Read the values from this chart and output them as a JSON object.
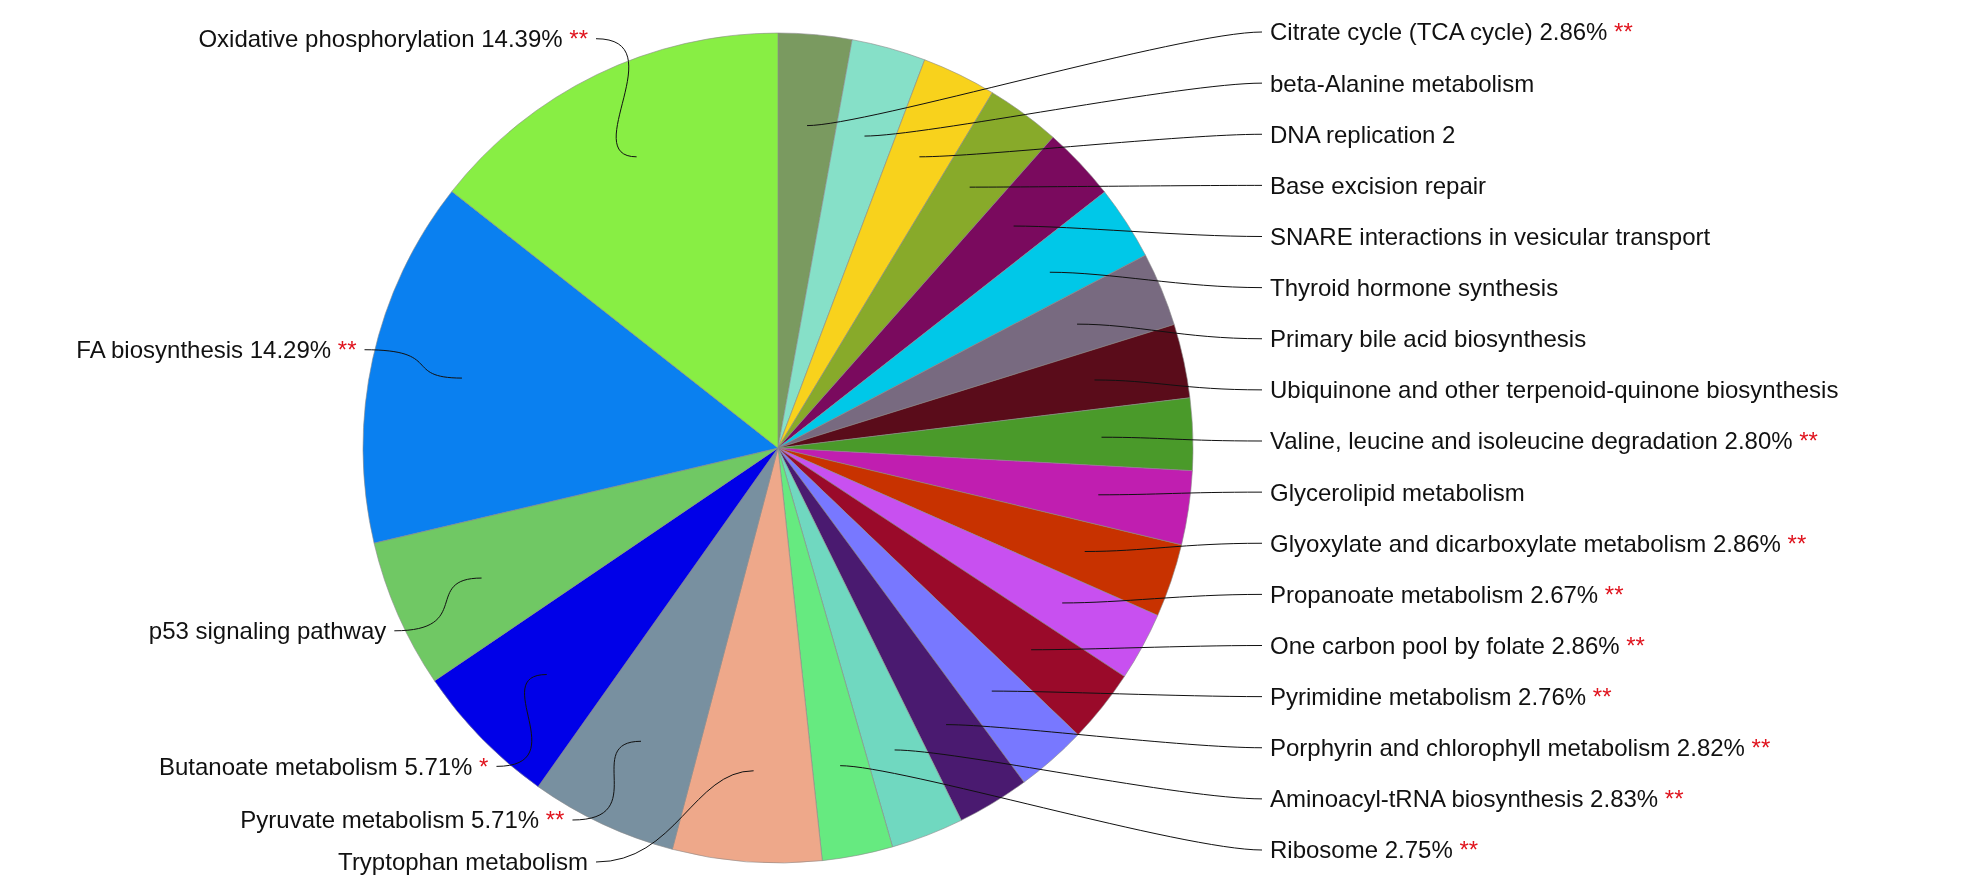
{
  "chart_data": {
    "type": "pie",
    "categories": [
      "Citrate cycle (TCA cycle)",
      "beta-Alanine metabolism",
      "DNA replication 2",
      "Base excision repair",
      "SNARE interactions in vesicular transport",
      "Thyroid hormone synthesis",
      "Primary bile acid biosynthesis",
      "Ubiquinone and other terpenoid-quinone biosynthesis",
      "Valine, leucine and isoleucine degradation",
      "Glycerolipid metabolism",
      "Glyoxylate and dicarboxylate metabolism",
      "Propanoate metabolism",
      "One carbon pool by folate",
      "Pyrimidine metabolism",
      "Porphyrin and chlorophyll metabolism",
      "Aminoacyl-tRNA biosynthesis",
      "Ribosome",
      "Tryptophan metabolism",
      "Pyruvate metabolism",
      "Butanoate metabolism",
      "p53 signaling pathway",
      "FA biosynthesis",
      "Oxidative phosphorylation"
    ],
    "values": [
      2.86,
      2.89,
      2.89,
      2.89,
      2.89,
      2.89,
      2.88,
      2.88,
      2.8,
      2.88,
      2.86,
      2.67,
      2.86,
      2.76,
      2.82,
      2.83,
      2.75,
      5.8,
      5.71,
      5.71,
      5.8,
      14.29,
      14.39
    ],
    "value_labels": [
      "2.86%",
      null,
      null,
      null,
      null,
      null,
      null,
      null,
      "2.80%",
      null,
      "2.86%",
      "2.67%",
      "2.86%",
      "2.76%",
      "2.82%",
      "2.83%",
      "2.75%",
      null,
      "5.71%",
      "5.71%",
      null,
      "14.29%",
      "14.39%"
    ],
    "colors": [
      "#7a9a60",
      "#86e0c8",
      "#f8d21c",
      "#88aa2a",
      "#7a0a5e",
      "#00c8e8",
      "#786a80",
      "#5a0c1a",
      "#4a9a2a",
      "#c01eb0",
      "#c83200",
      "#c850f0",
      "#9a0a2a",
      "#7878ff",
      "#4a1a70",
      "#70d8c0",
      "#66ea80",
      "#eea88a",
      "#7890a0",
      "#0000e8",
      "#70c864",
      "#0a80f0",
      "#88ee44"
    ],
    "annotations": [
      {
        "text": "**",
        "x": "Citrate cycle (TCA cycle)"
      },
      {
        "text": "**",
        "x": "Valine, leucine and isoleucine degradation"
      },
      {
        "text": "**",
        "x": "Glyoxylate and dicarboxylate metabolism"
      },
      {
        "text": "**",
        "x": "Propanoate metabolism"
      },
      {
        "text": "**",
        "x": "One carbon pool by folate"
      },
      {
        "text": "**",
        "x": "Pyrimidine metabolism"
      },
      {
        "text": "**",
        "x": "Porphyrin and chlorophyll metabolism"
      },
      {
        "text": "**",
        "x": "Aminoacyl-tRNA biosynthesis"
      },
      {
        "text": "**",
        "x": "Ribosome"
      },
      {
        "text": "**",
        "x": "Pyruvate metabolism"
      },
      {
        "text": "*",
        "x": "Butanoate metabolism"
      },
      {
        "text": "**",
        "x": "FA biosynthesis"
      },
      {
        "text": "**",
        "x": "Oxidative phosphorylation"
      }
    ]
  }
}
